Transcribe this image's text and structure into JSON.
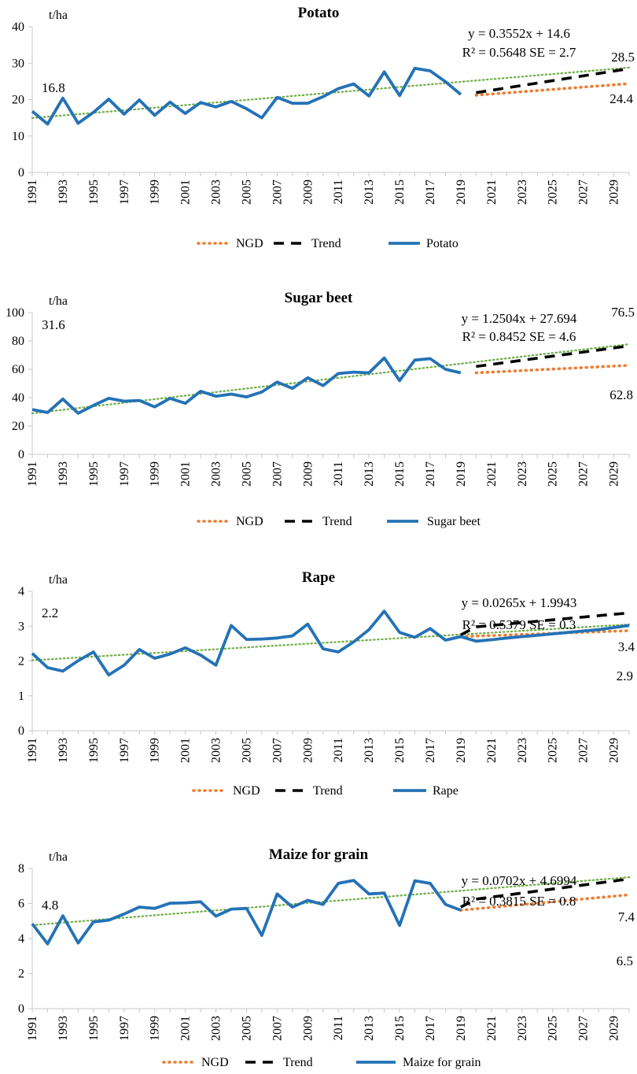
{
  "chart_data": [
    {
      "type": "line",
      "title": "Potato",
      "ylabel": "t/ha",
      "ylim": [
        0,
        40
      ],
      "yticks": [
        0,
        10,
        20,
        30,
        40
      ],
      "x_tick_labels": [
        "1991",
        "1993",
        "1995",
        "1997",
        "1999",
        "2001",
        "2003",
        "2005",
        "2007",
        "2009",
        "2011",
        "2013",
        "2015",
        "2017",
        "2019",
        "2021",
        "2023",
        "2025",
        "2027",
        "2029"
      ],
      "equation": "y = 0.3552x + 14.6",
      "r2": "R² = 0.5648 SE = 2.7",
      "annotations": {
        "start": "16.8",
        "trend_end": "28.5",
        "ngd_end": "24.4"
      },
      "legend": [
        "NGD",
        "Trend",
        "Potato"
      ],
      "x": [
        1991,
        1992,
        1993,
        1994,
        1995,
        1996,
        1997,
        1998,
        1999,
        2000,
        2001,
        2002,
        2003,
        2004,
        2005,
        2006,
        2007,
        2008,
        2009,
        2010,
        2011,
        2012,
        2013,
        2014,
        2015,
        2016,
        2017,
        2018,
        2019
      ],
      "series": [
        {
          "name": "Potato",
          "values": [
            16.8,
            13.3,
            20.4,
            13.5,
            16.5,
            20.1,
            16.0,
            19.9,
            15.7,
            19.3,
            16.2,
            19.2,
            18.0,
            19.5,
            17.5,
            15.0,
            20.6,
            19.0,
            19.0,
            20.8,
            23.0,
            24.3,
            21.0,
            27.6,
            21.1,
            28.6,
            27.9,
            24.9,
            21.4
          ]
        },
        {
          "name": "Trend",
          "x": [
            2020,
            2030
          ],
          "values": [
            21.9,
            28.5
          ]
        },
        {
          "name": "NGD",
          "x": [
            2020,
            2030
          ],
          "values": [
            21.2,
            24.4
          ]
        },
        {
          "name": "linear fit",
          "x": [
            1991,
            2030
          ],
          "values": [
            14.95,
            28.8
          ]
        }
      ]
    },
    {
      "type": "line",
      "title": "Sugar beet",
      "ylabel": "t/ha",
      "ylim": [
        0,
        100
      ],
      "yticks": [
        0,
        20,
        40,
        60,
        80,
        100
      ],
      "x_tick_labels": [
        "1991",
        "1993",
        "1995",
        "1997",
        "1999",
        "2001",
        "2003",
        "2005",
        "2007",
        "2009",
        "2011",
        "2013",
        "2015",
        "2017",
        "2019",
        "2021",
        "2023",
        "2025",
        "2027",
        "2029"
      ],
      "equation": "y = 1.2504x + 27.694",
      "r2": "R² = 0.8452 SE = 4.6",
      "annotations": {
        "start": "31.6",
        "trend_end": "76.5",
        "ngd_end": "62.8"
      },
      "legend": [
        "NGD",
        "Trend",
        "Sugar beet"
      ],
      "x": [
        1991,
        1992,
        1993,
        1994,
        1995,
        1996,
        1997,
        1998,
        1999,
        2000,
        2001,
        2002,
        2003,
        2004,
        2005,
        2006,
        2007,
        2008,
        2009,
        2010,
        2011,
        2012,
        2013,
        2014,
        2015,
        2016,
        2017,
        2018,
        2019
      ],
      "series": [
        {
          "name": "Sugar beet",
          "values": [
            31.6,
            29.5,
            39.0,
            29.0,
            34.5,
            39.5,
            37.5,
            38.0,
            33.5,
            39.5,
            36.0,
            44.5,
            41.0,
            42.5,
            40.5,
            44.0,
            51.0,
            46.5,
            54.0,
            48.5,
            57.0,
            58.0,
            57.5,
            68.0,
            52.0,
            66.5,
            67.5,
            60.0,
            57.5
          ]
        },
        {
          "name": "Trend",
          "x": [
            2020,
            2030
          ],
          "values": [
            62.0,
            76.5
          ]
        },
        {
          "name": "NGD",
          "x": [
            2020,
            2030
          ],
          "values": [
            57.5,
            62.8
          ]
        },
        {
          "name": "linear fit",
          "x": [
            1991,
            2030
          ],
          "values": [
            28.9,
            77.7
          ]
        }
      ]
    },
    {
      "type": "line",
      "title": "Rape",
      "ylabel": "t/ha",
      "ylim": [
        0,
        4
      ],
      "yticks": [
        0,
        1,
        2,
        3,
        4
      ],
      "x_tick_labels": [
        "1991",
        "1993",
        "1995",
        "1997",
        "1999",
        "2001",
        "2003",
        "2005",
        "2007",
        "2009",
        "2011",
        "2013",
        "2015",
        "2017",
        "2019",
        "2021",
        "2023",
        "2025",
        "2027",
        "2029"
      ],
      "equation": "y = 0.0265x + 1.9943",
      "r2": "R² = 0.5379 SE = 0.3",
      "annotations": {
        "start": "2.2",
        "trend_end": "3.4",
        "ngd_end": "2.9"
      },
      "legend": [
        "NGD",
        "Trend",
        "Rape"
      ],
      "x": [
        1991,
        1992,
        1993,
        1994,
        1995,
        1996,
        1997,
        1998,
        1999,
        2000,
        2001,
        2002,
        2003,
        2004,
        2005,
        2006,
        2007,
        2008,
        2009,
        2010,
        2011,
        2012,
        2013,
        2014,
        2015,
        2016,
        2017,
        2018,
        2019,
        2020,
        2021,
        2022,
        2023,
        2024,
        2025,
        2026,
        2027,
        2028,
        2029,
        2030
      ],
      "series": [
        {
          "name": "Rape",
          "values": [
            2.22,
            1.81,
            1.71,
            2.01,
            2.26,
            1.6,
            1.88,
            2.33,
            2.08,
            2.2,
            2.38,
            2.17,
            1.88,
            3.02,
            2.62,
            2.63,
            2.66,
            2.72,
            3.06,
            2.35,
            2.26,
            2.55,
            2.9,
            3.43,
            2.82,
            2.68,
            2.93,
            2.6,
            2.7,
            2.57,
            2.61,
            2.66,
            2.7,
            2.74,
            2.78,
            2.82,
            2.86,
            2.9,
            2.96,
            3.02
          ]
        },
        {
          "name": "Trend",
          "x": [
            2019,
            2020,
            2030
          ],
          "values": [
            2.75,
            2.98,
            3.38
          ]
        },
        {
          "name": "NGD",
          "x": [
            2019,
            2030
          ],
          "values": [
            2.7,
            2.87
          ]
        },
        {
          "name": "linear fit",
          "x": [
            1991,
            2030
          ],
          "values": [
            2.02,
            3.05
          ]
        }
      ]
    },
    {
      "type": "line",
      "title": "Maize for grain",
      "ylabel": "t/ha",
      "ylim": [
        0,
        8
      ],
      "yticks": [
        0,
        2,
        4,
        6,
        8
      ],
      "x_tick_labels": [
        "1991",
        "1993",
        "1995",
        "1997",
        "1999",
        "2001",
        "2003",
        "2005",
        "2007",
        "2009",
        "2011",
        "2013",
        "2015",
        "2017",
        "2019",
        "2021",
        "2023",
        "2025",
        "2027",
        "2029"
      ],
      "equation": "y = 0.0702x + 4.6994",
      "r2": "R² = 0.3815 SE = 0.8",
      "annotations": {
        "start": "4.8",
        "trend_end": "7.4",
        "ngd_end": "6.5"
      },
      "legend": [
        "NGD",
        "Trend",
        "Maize for grain"
      ],
      "x": [
        1991,
        1992,
        1993,
        1994,
        1995,
        1996,
        1997,
        1998,
        1999,
        2000,
        2001,
        2002,
        2003,
        2004,
        2005,
        2006,
        2007,
        2008,
        2009,
        2010,
        2011,
        2012,
        2013,
        2014,
        2015,
        2016,
        2017,
        2018,
        2019
      ],
      "series": [
        {
          "name": "Maize for grain",
          "values": [
            4.85,
            3.7,
            5.3,
            3.75,
            4.95,
            5.05,
            5.4,
            5.8,
            5.72,
            6.02,
            6.04,
            6.1,
            5.28,
            5.68,
            5.72,
            4.18,
            6.55,
            5.8,
            6.18,
            5.95,
            7.15,
            7.32,
            6.55,
            6.6,
            4.75,
            7.3,
            7.15,
            5.95,
            5.62
          ]
        },
        {
          "name": "Trend",
          "x": [
            2019,
            2020,
            2030
          ],
          "values": [
            5.8,
            6.25,
            7.4
          ]
        },
        {
          "name": "NGD",
          "x": [
            2019,
            2030
          ],
          "values": [
            5.62,
            6.5
          ]
        },
        {
          "name": "linear fit",
          "x": [
            1991,
            2030
          ],
          "values": [
            4.77,
            7.5
          ]
        }
      ]
    }
  ]
}
